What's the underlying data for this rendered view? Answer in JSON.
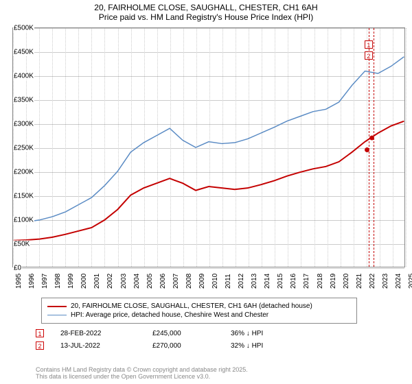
{
  "title_line1": "20, FAIRHOLME CLOSE, SAUGHALL, CHESTER, CH1 6AH",
  "title_line2": "Price paid vs. HM Land Registry's House Price Index (HPI)",
  "chart": {
    "type": "line",
    "background_color": "#ffffff",
    "grid_color": "#cccccc",
    "border_color": "#888888",
    "y_axis": {
      "min": 0,
      "max": 500000,
      "tick_step": 50000,
      "ticks": [
        {
          "v": 0,
          "l": "£0"
        },
        {
          "v": 50000,
          "l": "£50K"
        },
        {
          "v": 100000,
          "l": "£100K"
        },
        {
          "v": 150000,
          "l": "£150K"
        },
        {
          "v": 200000,
          "l": "£200K"
        },
        {
          "v": 250000,
          "l": "£250K"
        },
        {
          "v": 300000,
          "l": "£300K"
        },
        {
          "v": 350000,
          "l": "£350K"
        },
        {
          "v": 400000,
          "l": "£400K"
        },
        {
          "v": 450000,
          "l": "£450K"
        },
        {
          "v": 500000,
          "l": "£500K"
        }
      ],
      "label_fontsize": 10
    },
    "x_axis": {
      "min": 1995,
      "max": 2025,
      "tick_step": 1,
      "ticks": [
        "1995",
        "1996",
        "1997",
        "1998",
        "1999",
        "2000",
        "2001",
        "2002",
        "2003",
        "2004",
        "2005",
        "2006",
        "2007",
        "2008",
        "2009",
        "2010",
        "2011",
        "2012",
        "2013",
        "2014",
        "2015",
        "2016",
        "2017",
        "2018",
        "2019",
        "2020",
        "2021",
        "2022",
        "2023",
        "2024",
        "2025"
      ],
      "label_fontsize": 10,
      "label_rotation": -90
    },
    "series": [
      {
        "key": "property",
        "color": "#c40000",
        "line_width": 2,
        "data": [
          {
            "x": 1995,
            "y": 55000
          },
          {
            "x": 1996,
            "y": 56000
          },
          {
            "x": 1997,
            "y": 58000
          },
          {
            "x": 1998,
            "y": 62000
          },
          {
            "x": 1999,
            "y": 68000
          },
          {
            "x": 2000,
            "y": 75000
          },
          {
            "x": 2001,
            "y": 82000
          },
          {
            "x": 2002,
            "y": 98000
          },
          {
            "x": 2003,
            "y": 120000
          },
          {
            "x": 2004,
            "y": 150000
          },
          {
            "x": 2005,
            "y": 165000
          },
          {
            "x": 2006,
            "y": 175000
          },
          {
            "x": 2007,
            "y": 185000
          },
          {
            "x": 2008,
            "y": 175000
          },
          {
            "x": 2009,
            "y": 160000
          },
          {
            "x": 2010,
            "y": 168000
          },
          {
            "x": 2011,
            "y": 165000
          },
          {
            "x": 2012,
            "y": 162000
          },
          {
            "x": 2013,
            "y": 165000
          },
          {
            "x": 2014,
            "y": 172000
          },
          {
            "x": 2015,
            "y": 180000
          },
          {
            "x": 2016,
            "y": 190000
          },
          {
            "x": 2017,
            "y": 198000
          },
          {
            "x": 2018,
            "y": 205000
          },
          {
            "x": 2019,
            "y": 210000
          },
          {
            "x": 2020,
            "y": 220000
          },
          {
            "x": 2021,
            "y": 240000
          },
          {
            "x": 2022,
            "y": 262000
          },
          {
            "x": 2023,
            "y": 280000
          },
          {
            "x": 2024,
            "y": 295000
          },
          {
            "x": 2025,
            "y": 305000
          }
        ]
      },
      {
        "key": "hpi",
        "color": "#5a8bc4",
        "line_width": 1.5,
        "data": [
          {
            "x": 1995,
            "y": 92000
          },
          {
            "x": 1996,
            "y": 94000
          },
          {
            "x": 1997,
            "y": 98000
          },
          {
            "x": 1998,
            "y": 105000
          },
          {
            "x": 1999,
            "y": 115000
          },
          {
            "x": 2000,
            "y": 130000
          },
          {
            "x": 2001,
            "y": 145000
          },
          {
            "x": 2002,
            "y": 170000
          },
          {
            "x": 2003,
            "y": 200000
          },
          {
            "x": 2004,
            "y": 240000
          },
          {
            "x": 2005,
            "y": 260000
          },
          {
            "x": 2006,
            "y": 275000
          },
          {
            "x": 2007,
            "y": 290000
          },
          {
            "x": 2008,
            "y": 265000
          },
          {
            "x": 2009,
            "y": 250000
          },
          {
            "x": 2010,
            "y": 262000
          },
          {
            "x": 2011,
            "y": 258000
          },
          {
            "x": 2012,
            "y": 260000
          },
          {
            "x": 2013,
            "y": 268000
          },
          {
            "x": 2014,
            "y": 280000
          },
          {
            "x": 2015,
            "y": 292000
          },
          {
            "x": 2016,
            "y": 305000
          },
          {
            "x": 2017,
            "y": 315000
          },
          {
            "x": 2018,
            "y": 325000
          },
          {
            "x": 2019,
            "y": 330000
          },
          {
            "x": 2020,
            "y": 345000
          },
          {
            "x": 2021,
            "y": 380000
          },
          {
            "x": 2022,
            "y": 410000
          },
          {
            "x": 2023,
            "y": 405000
          },
          {
            "x": 2024,
            "y": 420000
          },
          {
            "x": 2025,
            "y": 440000
          }
        ]
      }
    ],
    "markers": [
      {
        "n": "1",
        "x": 2022.16,
        "y": 245000,
        "color": "#c40000"
      },
      {
        "n": "2",
        "x": 2022.53,
        "y": 270000,
        "color": "#c40000"
      }
    ],
    "marker_box_stack_top_x": 2022.16
  },
  "legend": {
    "border_color": "#888888",
    "items": [
      {
        "color": "#c40000",
        "width": 2,
        "label": "20, FAIRHOLME CLOSE, SAUGHALL, CHESTER, CH1 6AH (detached house)"
      },
      {
        "color": "#5a8bc4",
        "width": 1.5,
        "label": "HPI: Average price, detached house, Cheshire West and Chester"
      }
    ]
  },
  "transactions": [
    {
      "n": "1",
      "date": "28-FEB-2022",
      "price": "£245,000",
      "delta": "36% ↓ HPI"
    },
    {
      "n": "2",
      "date": "13-JUL-2022",
      "price": "£270,000",
      "delta": "32% ↓ HPI"
    }
  ],
  "footer_line1": "Contains HM Land Registry data © Crown copyright and database right 2025.",
  "footer_line2": "This data is licensed under the Open Government Licence v3.0."
}
